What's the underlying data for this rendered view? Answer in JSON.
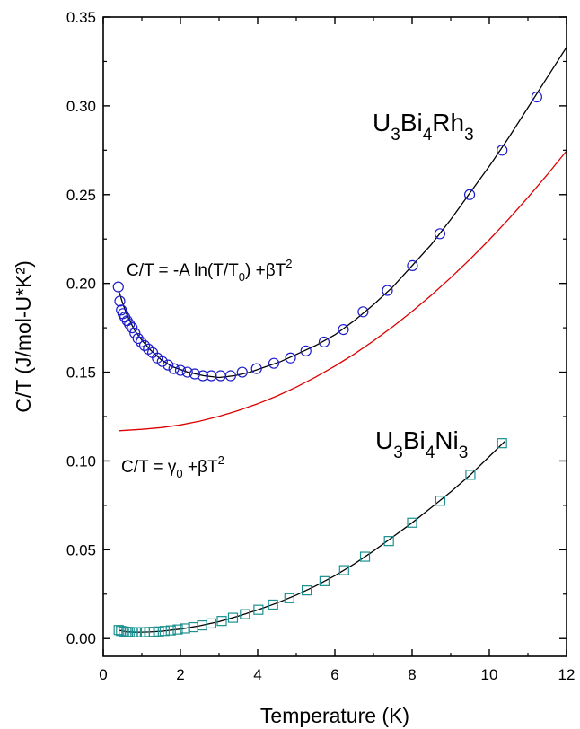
{
  "chart_data": {
    "type": "scatter",
    "xlabel": "Temperature (K)",
    "ylabel": "C/T (J/mol-U*K²)",
    "xlim": [
      0,
      12
    ],
    "ylim": [
      -0.01,
      0.35
    ],
    "xticks": [
      0,
      2,
      4,
      6,
      8,
      10,
      12
    ],
    "xtick_labels": [
      "0",
      "2",
      "4",
      "6",
      "8",
      "10",
      "12"
    ],
    "yticks": [
      0.0,
      0.05,
      0.1,
      0.15,
      0.2,
      0.25,
      0.3,
      0.35
    ],
    "ytick_labels": [
      "0.00",
      "0.05",
      "0.10",
      "0.15",
      "0.20",
      "0.25",
      "0.30",
      "0.35"
    ],
    "grid": false,
    "series": [
      {
        "marker": "circle",
        "color": "#1c1ccc",
        "points": [
          [
            0.39,
            0.198
          ],
          [
            0.43,
            0.19
          ],
          [
            0.47,
            0.185
          ],
          [
            0.51,
            0.183
          ],
          [
            0.56,
            0.181
          ],
          [
            0.62,
            0.179
          ],
          [
            0.68,
            0.177
          ],
          [
            0.75,
            0.175
          ],
          [
            0.82,
            0.172
          ],
          [
            0.9,
            0.169
          ],
          [
            0.98,
            0.167
          ],
          [
            1.07,
            0.165
          ],
          [
            1.17,
            0.163
          ],
          [
            1.28,
            0.161
          ],
          [
            1.4,
            0.158
          ],
          [
            1.53,
            0.156
          ],
          [
            1.68,
            0.154
          ],
          [
            1.83,
            0.152
          ],
          [
            2.0,
            0.151
          ],
          [
            2.18,
            0.15
          ],
          [
            2.37,
            0.149
          ],
          [
            2.58,
            0.148
          ],
          [
            2.8,
            0.148
          ],
          [
            3.04,
            0.148
          ],
          [
            3.3,
            0.148
          ],
          [
            3.6,
            0.15
          ],
          [
            3.97,
            0.152
          ],
          [
            4.42,
            0.155
          ],
          [
            4.85,
            0.158
          ],
          [
            5.25,
            0.162
          ],
          [
            5.72,
            0.167
          ],
          [
            6.22,
            0.174
          ],
          [
            6.73,
            0.184
          ],
          [
            7.36,
            0.196
          ],
          [
            8.01,
            0.21
          ],
          [
            8.72,
            0.228
          ],
          [
            9.49,
            0.25
          ],
          [
            10.33,
            0.275
          ],
          [
            11.23,
            0.305
          ]
        ]
      },
      {
        "marker": "square",
        "color": "#1a9090",
        "points": [
          [
            0.4,
            0.0048
          ],
          [
            0.46,
            0.0043
          ],
          [
            0.53,
            0.004
          ],
          [
            0.6,
            0.0038
          ],
          [
            0.68,
            0.0037
          ],
          [
            0.77,
            0.0036
          ],
          [
            0.87,
            0.0036
          ],
          [
            0.97,
            0.0036
          ],
          [
            1.08,
            0.0036
          ],
          [
            1.19,
            0.0037
          ],
          [
            1.31,
            0.0038
          ],
          [
            1.44,
            0.004
          ],
          [
            1.59,
            0.0043
          ],
          [
            1.75,
            0.0046
          ],
          [
            1.93,
            0.0051
          ],
          [
            2.12,
            0.0057
          ],
          [
            2.33,
            0.0064
          ],
          [
            2.56,
            0.0074
          ],
          [
            2.8,
            0.0085
          ],
          [
            3.07,
            0.0099
          ],
          [
            3.36,
            0.0117
          ],
          [
            3.67,
            0.0137
          ],
          [
            4.02,
            0.0162
          ],
          [
            4.4,
            0.0191
          ],
          [
            4.82,
            0.0227
          ],
          [
            5.27,
            0.0271
          ],
          [
            5.73,
            0.0323
          ],
          [
            6.24,
            0.0385
          ],
          [
            6.78,
            0.0461
          ],
          [
            7.4,
            0.0549
          ],
          [
            8.0,
            0.0652
          ],
          [
            8.73,
            0.0776
          ],
          [
            9.51,
            0.0922
          ],
          [
            10.33,
            0.11
          ]
        ]
      }
    ],
    "curves": [
      {
        "color": "#000000",
        "points": [
          [
            0.4,
            0.196
          ],
          [
            0.5,
            0.189
          ],
          [
            0.6,
            0.183
          ],
          [
            0.8,
            0.174
          ],
          [
            1.0,
            0.168
          ],
          [
            1.2,
            0.163
          ],
          [
            1.5,
            0.157
          ],
          [
            1.8,
            0.153
          ],
          [
            2.2,
            0.15
          ],
          [
            2.6,
            0.148
          ],
          [
            3.0,
            0.147
          ],
          [
            3.4,
            0.148
          ],
          [
            3.8,
            0.15
          ],
          [
            4.2,
            0.153
          ],
          [
            4.6,
            0.156
          ],
          [
            5.0,
            0.16
          ],
          [
            5.5,
            0.165
          ],
          [
            6.0,
            0.171
          ],
          [
            6.5,
            0.179
          ],
          [
            7.0,
            0.188
          ],
          [
            7.5,
            0.198
          ],
          [
            8.0,
            0.21
          ],
          [
            8.5,
            0.222
          ],
          [
            9.0,
            0.236
          ],
          [
            9.5,
            0.251
          ],
          [
            10.0,
            0.266
          ],
          [
            10.5,
            0.282
          ],
          [
            11.0,
            0.299
          ],
          [
            11.5,
            0.316
          ],
          [
            12.0,
            0.333
          ]
        ]
      },
      {
        "color": "#dd0000",
        "points": [
          [
            0.4,
            0.117
          ],
          [
            1.0,
            0.1178
          ],
          [
            1.5,
            0.1188
          ],
          [
            2.0,
            0.1203
          ],
          [
            2.5,
            0.1224
          ],
          [
            3.0,
            0.1251
          ],
          [
            3.5,
            0.1284
          ],
          [
            4.0,
            0.1322
          ],
          [
            4.5,
            0.1366
          ],
          [
            5.0,
            0.1416
          ],
          [
            5.5,
            0.1472
          ],
          [
            6.0,
            0.1534
          ],
          [
            6.5,
            0.1602
          ],
          [
            7.0,
            0.1676
          ],
          [
            7.5,
            0.1756
          ],
          [
            8.0,
            0.1842
          ],
          [
            8.5,
            0.1934
          ],
          [
            9.0,
            0.2032
          ],
          [
            9.5,
            0.2136
          ],
          [
            10.0,
            0.2246
          ],
          [
            10.5,
            0.2362
          ],
          [
            11.0,
            0.2484
          ],
          [
            11.5,
            0.2612
          ],
          [
            12.0,
            0.2746
          ]
        ]
      },
      {
        "color": "#000000",
        "points": [
          [
            0.4,
            0.0047
          ],
          [
            0.6,
            0.0038
          ],
          [
            0.8,
            0.0036
          ],
          [
            1.0,
            0.0036
          ],
          [
            1.2,
            0.0037
          ],
          [
            1.5,
            0.0041
          ],
          [
            2.0,
            0.0053
          ],
          [
            2.5,
            0.0072
          ],
          [
            3.0,
            0.0095
          ],
          [
            3.5,
            0.0126
          ],
          [
            4.0,
            0.0161
          ],
          [
            4.5,
            0.02
          ],
          [
            5.0,
            0.0245
          ],
          [
            5.5,
            0.0296
          ],
          [
            6.0,
            0.0354
          ],
          [
            6.5,
            0.042
          ],
          [
            7.0,
            0.0493
          ],
          [
            7.5,
            0.0572
          ],
          [
            8.0,
            0.0652
          ],
          [
            8.5,
            0.0738
          ],
          [
            9.0,
            0.0826
          ],
          [
            9.5,
            0.092
          ],
          [
            10.0,
            0.1025
          ],
          [
            10.4,
            0.111
          ]
        ]
      }
    ],
    "annotations": {
      "rh_compound": {
        "parts": [
          "U",
          "3",
          "Bi",
          "4",
          "Rh",
          "3"
        ]
      },
      "ni_compound": {
        "parts": [
          "U",
          "3",
          "Bi",
          "4",
          "Ni",
          "3"
        ]
      },
      "log_formula": {
        "parts": [
          "C/T =  -A ln(T/T",
          "0",
          ") +βT",
          "2"
        ]
      },
      "fl_formula": {
        "parts": [
          "C/T = γ",
          "0",
          " +βT",
          "2"
        ]
      }
    }
  }
}
